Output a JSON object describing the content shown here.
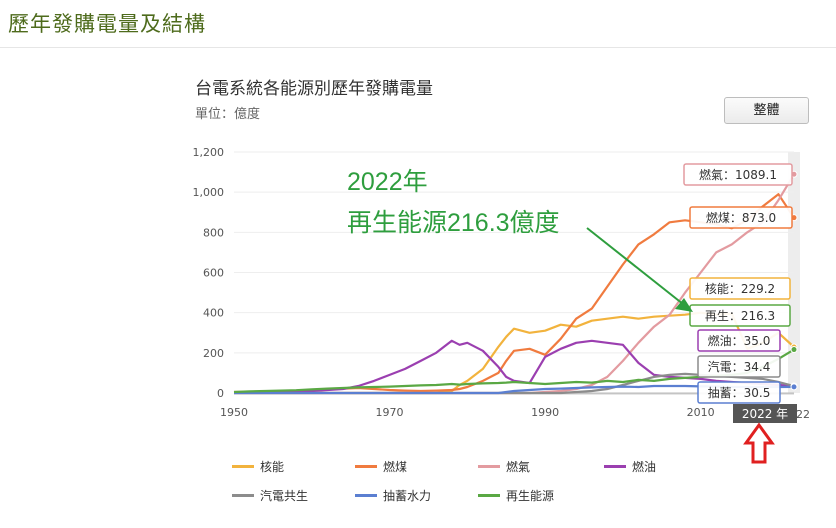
{
  "page": {
    "title": "歷年發購電量及結構"
  },
  "chart": {
    "title": "台電系統各能源別歷年發購電量",
    "unit": "單位：億度",
    "view_button": "整體",
    "annotation": {
      "year_text": "2022年",
      "text": "再生能源216.3億度"
    },
    "year_badge": "2022 年",
    "tooltips": [
      {
        "label": "燃氣：1089.1",
        "color": "#e39ba0"
      },
      {
        "label": "燃煤：873.0",
        "color": "#f07b3f"
      },
      {
        "label": "核能：229.2",
        "color": "#f2b33d"
      },
      {
        "label": "再生：216.3",
        "color": "#5aa844"
      },
      {
        "label": "燃油：35.0",
        "color": "#9b3fb0"
      },
      {
        "label": "汽電：34.4",
        "color": "#8c8c8c"
      },
      {
        "label": "抽蓄：30.5",
        "color": "#5b7fd1"
      }
    ]
  },
  "chart_data": {
    "type": "line",
    "x": [
      1950,
      1952,
      1954,
      1956,
      1958,
      1960,
      1962,
      1964,
      1966,
      1968,
      1970,
      1972,
      1974,
      1976,
      1978,
      1979,
      1980,
      1982,
      1984,
      1985,
      1986,
      1988,
      1990,
      1992,
      1994,
      1996,
      1998,
      2000,
      2002,
      2004,
      2006,
      2008,
      2010,
      2012,
      2014,
      2016,
      2018,
      2020,
      2022
    ],
    "x_ticks": [
      "1950",
      "1970",
      "1990",
      "2010"
    ],
    "x_tick_values": [
      1950,
      1970,
      1990,
      2010
    ],
    "y_ticks": [
      "0",
      "200",
      "400",
      "600",
      "800",
      "1,000",
      "1,200"
    ],
    "ylim": [
      0,
      1200
    ],
    "xlim": [
      1950,
      2022
    ],
    "series": [
      {
        "name": "核能",
        "color": "#f2b33d",
        "values": [
          0,
          0,
          0,
          0,
          0,
          0,
          0,
          0,
          0,
          0,
          0,
          0,
          0,
          0,
          10,
          40,
          60,
          120,
          230,
          280,
          320,
          300,
          310,
          340,
          330,
          360,
          370,
          380,
          370,
          380,
          385,
          390,
          400,
          390,
          395,
          220,
          250,
          300,
          229.2
        ]
      },
      {
        "name": "燃煤",
        "color": "#f07b3f",
        "values": [
          5,
          6,
          8,
          10,
          12,
          15,
          18,
          22,
          25,
          20,
          15,
          12,
          10,
          12,
          15,
          20,
          30,
          60,
          100,
          160,
          210,
          220,
          190,
          270,
          370,
          420,
          530,
          640,
          740,
          790,
          850,
          860,
          850,
          840,
          820,
          860,
          930,
          990,
          873.0
        ]
      },
      {
        "name": "燃氣",
        "color": "#e39ba0",
        "values": [
          0,
          0,
          0,
          0,
          0,
          0,
          0,
          0,
          0,
          0,
          0,
          0,
          0,
          0,
          0,
          0,
          0,
          0,
          0,
          0,
          0,
          0,
          5,
          10,
          20,
          40,
          80,
          160,
          250,
          330,
          390,
          500,
          600,
          700,
          740,
          800,
          850,
          960,
          1089.1
        ]
      },
      {
        "name": "燃油",
        "color": "#9b3fb0",
        "values": [
          2,
          3,
          4,
          5,
          8,
          10,
          15,
          20,
          35,
          60,
          90,
          120,
          160,
          200,
          260,
          240,
          250,
          210,
          130,
          80,
          60,
          50,
          180,
          220,
          250,
          260,
          250,
          240,
          150,
          90,
          80,
          75,
          70,
          60,
          55,
          50,
          45,
          40,
          35.0
        ]
      },
      {
        "name": "汽電共生",
        "color": "#8c8c8c",
        "values": [
          0,
          0,
          0,
          0,
          0,
          0,
          0,
          0,
          0,
          0,
          0,
          0,
          0,
          0,
          0,
          0,
          0,
          0,
          0,
          0,
          0,
          0,
          0,
          0,
          5,
          10,
          20,
          40,
          60,
          80,
          90,
          95,
          90,
          85,
          80,
          75,
          70,
          55,
          34.4
        ]
      },
      {
        "name": "抽蓄水力",
        "color": "#5b7fd1",
        "values": [
          0,
          0,
          0,
          0,
          0,
          0,
          0,
          0,
          0,
          0,
          0,
          0,
          0,
          0,
          0,
          0,
          0,
          0,
          0,
          5,
          10,
          15,
          20,
          22,
          25,
          28,
          30,
          32,
          30,
          35,
          35,
          35,
          33,
          32,
          30,
          30,
          30,
          30,
          30.5
        ]
      },
      {
        "name": "再生能源",
        "color": "#5aa844",
        "values": [
          5,
          8,
          10,
          12,
          14,
          18,
          22,
          25,
          28,
          30,
          32,
          35,
          38,
          40,
          45,
          42,
          45,
          48,
          50,
          52,
          55,
          50,
          45,
          50,
          55,
          52,
          60,
          55,
          65,
          60,
          70,
          75,
          80,
          85,
          90,
          100,
          130,
          170,
          216.3
        ]
      }
    ],
    "legend_position": "bottom"
  }
}
